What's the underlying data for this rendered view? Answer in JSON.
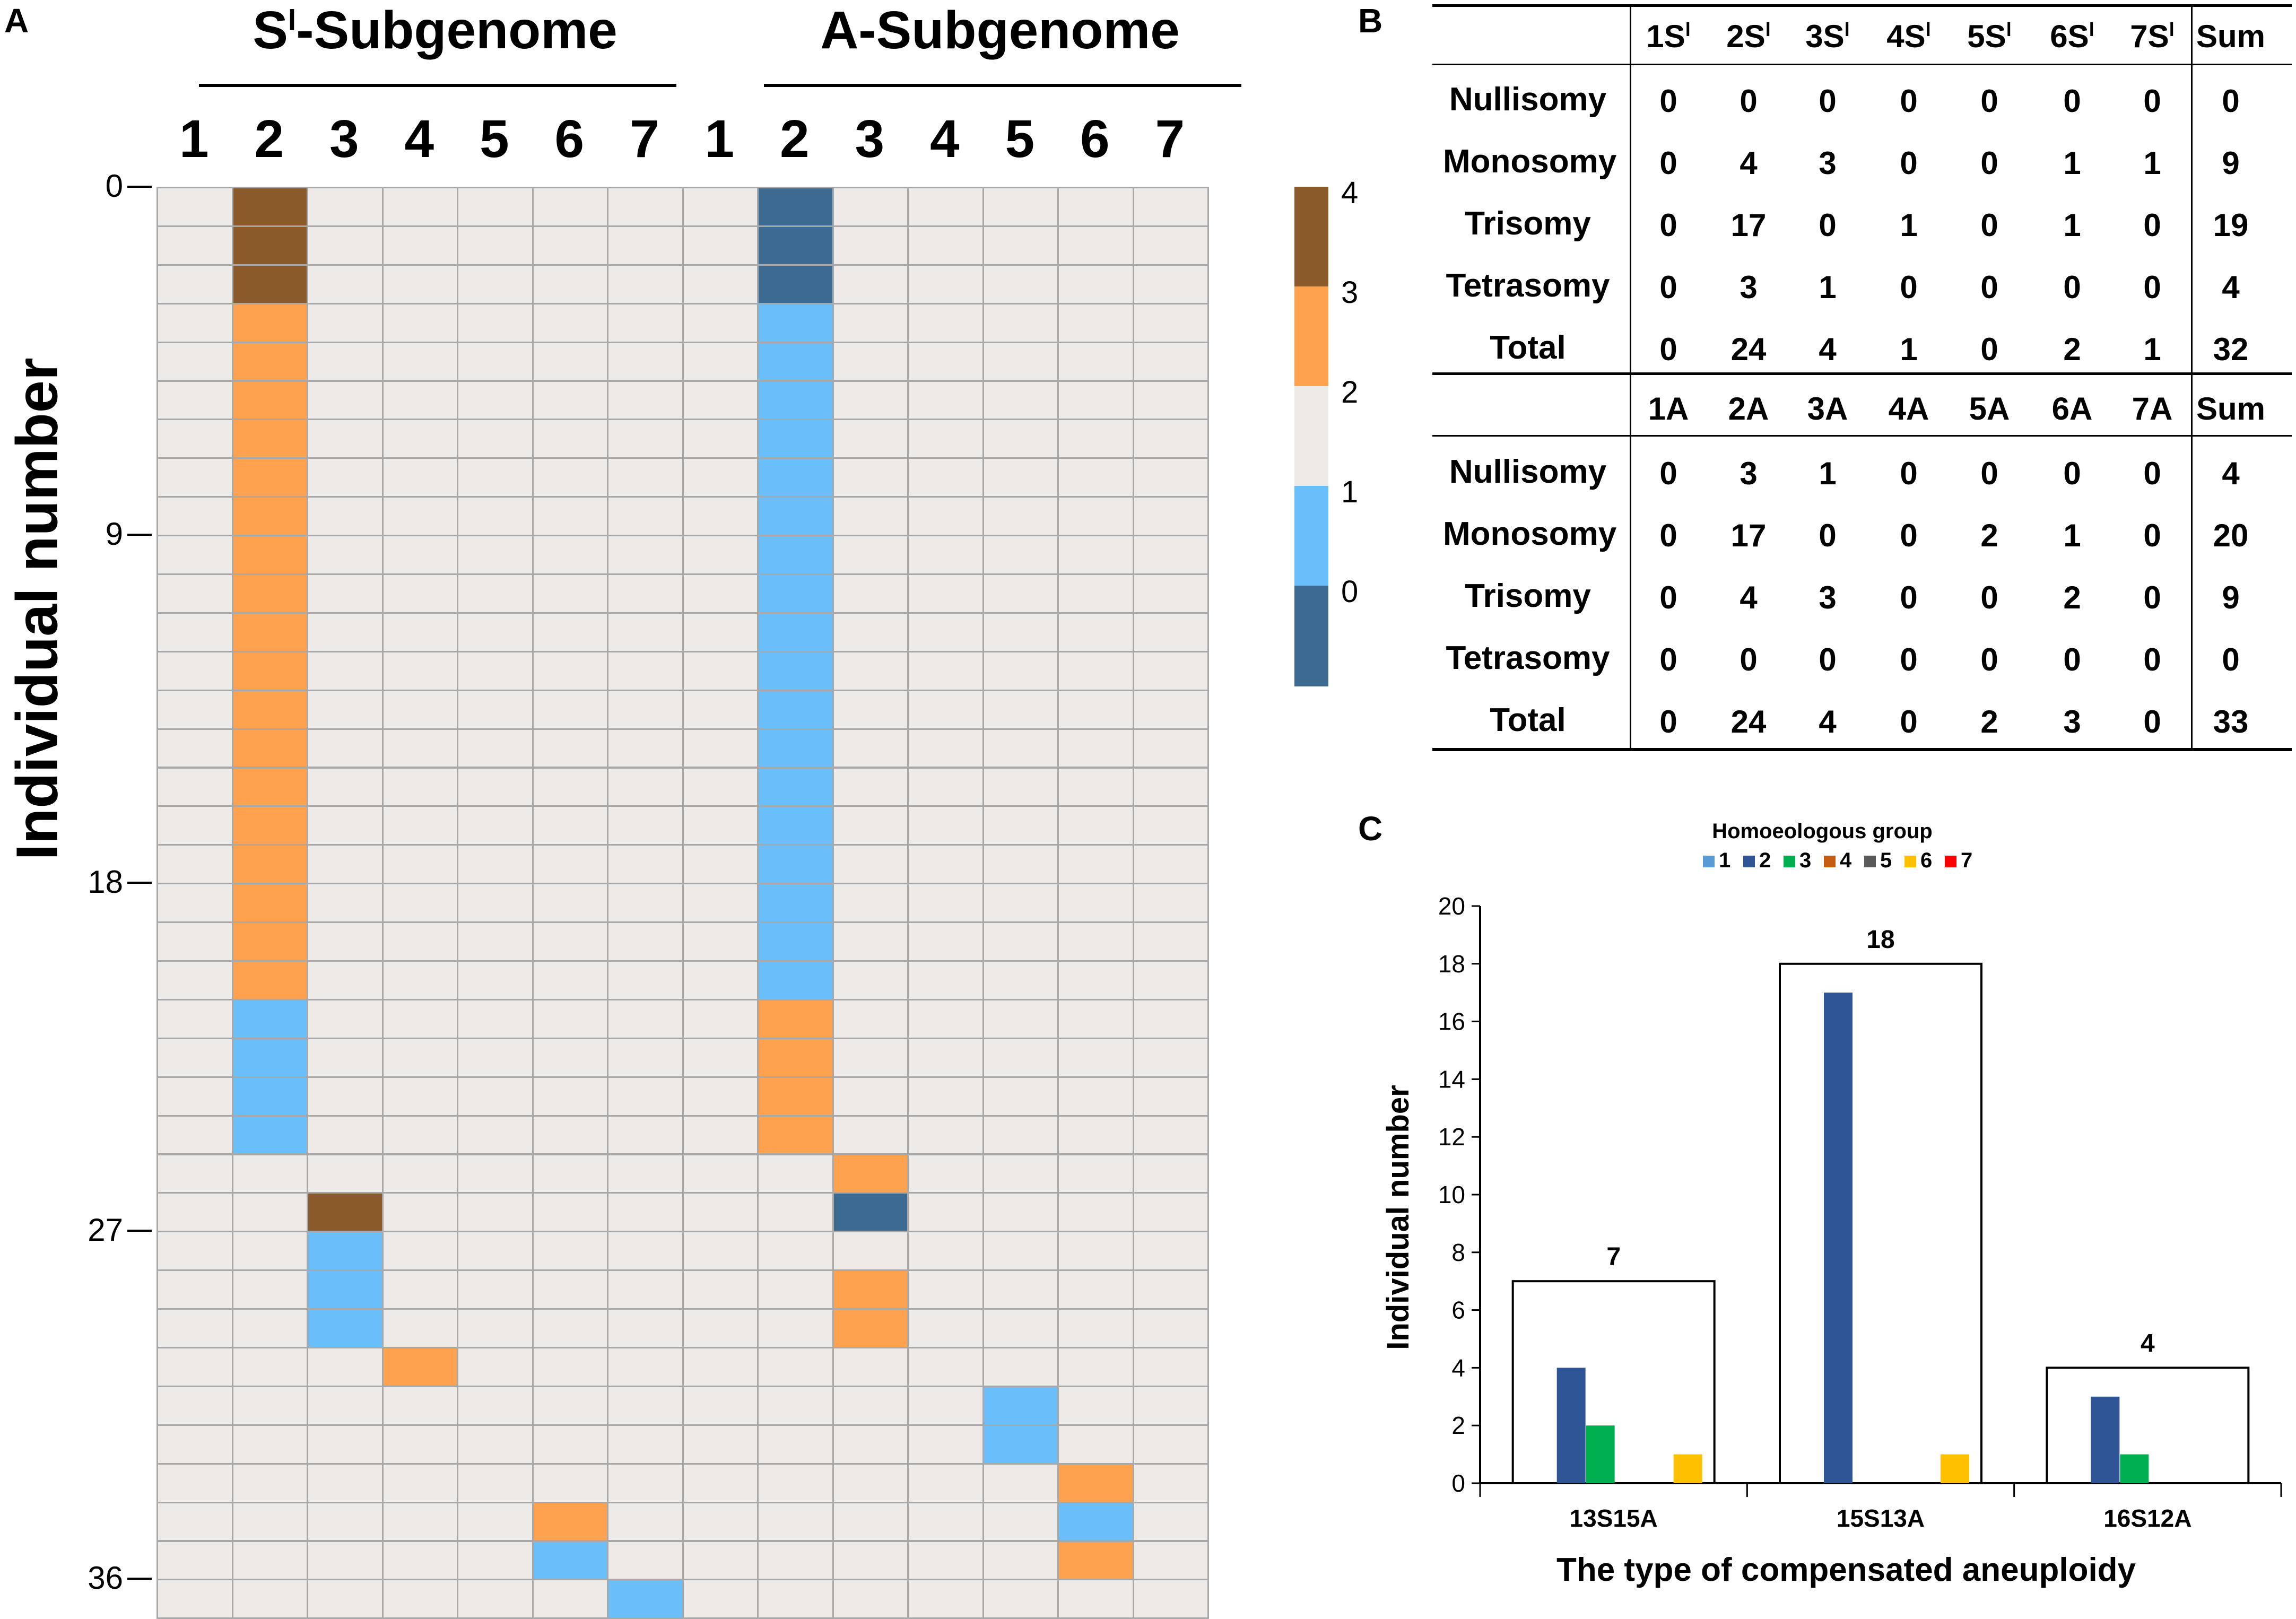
{
  "panels": {
    "a": "A",
    "b": "B",
    "c": "C"
  },
  "chart_data": [
    {
      "type": "heatmap",
      "title_left": "S",
      "title_left_sup": "l",
      "title_left_rest": "-Subgenome",
      "title_right": "A-Subgenome",
      "columns_left": [
        "1",
        "2",
        "3",
        "4",
        "5",
        "6",
        "7"
      ],
      "columns_right": [
        "1",
        "2",
        "3",
        "4",
        "5",
        "6",
        "7"
      ],
      "ylabel": "Individual number",
      "yticks": [
        "0",
        "9",
        "18",
        "27",
        "36"
      ],
      "colorbar": {
        "ticks": [
          "4",
          "3",
          "2",
          "1",
          "0"
        ],
        "colors": [
          "#8B5A2B",
          "#FFA24F",
          "#EDEAE8",
          "#6ABFFA",
          "#3D6A90"
        ]
      },
      "rows": [
        [
          2,
          4,
          2,
          2,
          2,
          2,
          2,
          2,
          0,
          2,
          2,
          2,
          2,
          2
        ],
        [
          2,
          4,
          2,
          2,
          2,
          2,
          2,
          2,
          0,
          2,
          2,
          2,
          2,
          2
        ],
        [
          2,
          4,
          2,
          2,
          2,
          2,
          2,
          2,
          0,
          2,
          2,
          2,
          2,
          2
        ],
        [
          2,
          3,
          2,
          2,
          2,
          2,
          2,
          2,
          1,
          2,
          2,
          2,
          2,
          2
        ],
        [
          2,
          3,
          2,
          2,
          2,
          2,
          2,
          2,
          1,
          2,
          2,
          2,
          2,
          2
        ],
        [
          2,
          3,
          2,
          2,
          2,
          2,
          2,
          2,
          1,
          2,
          2,
          2,
          2,
          2
        ],
        [
          2,
          3,
          2,
          2,
          2,
          2,
          2,
          2,
          1,
          2,
          2,
          2,
          2,
          2
        ],
        [
          2,
          3,
          2,
          2,
          2,
          2,
          2,
          2,
          1,
          2,
          2,
          2,
          2,
          2
        ],
        [
          2,
          3,
          2,
          2,
          2,
          2,
          2,
          2,
          1,
          2,
          2,
          2,
          2,
          2
        ],
        [
          2,
          3,
          2,
          2,
          2,
          2,
          2,
          2,
          1,
          2,
          2,
          2,
          2,
          2
        ],
        [
          2,
          3,
          2,
          2,
          2,
          2,
          2,
          2,
          1,
          2,
          2,
          2,
          2,
          2
        ],
        [
          2,
          3,
          2,
          2,
          2,
          2,
          2,
          2,
          1,
          2,
          2,
          2,
          2,
          2
        ],
        [
          2,
          3,
          2,
          2,
          2,
          2,
          2,
          2,
          1,
          2,
          2,
          2,
          2,
          2
        ],
        [
          2,
          3,
          2,
          2,
          2,
          2,
          2,
          2,
          1,
          2,
          2,
          2,
          2,
          2
        ],
        [
          2,
          3,
          2,
          2,
          2,
          2,
          2,
          2,
          1,
          2,
          2,
          2,
          2,
          2
        ],
        [
          2,
          3,
          2,
          2,
          2,
          2,
          2,
          2,
          1,
          2,
          2,
          2,
          2,
          2
        ],
        [
          2,
          3,
          2,
          2,
          2,
          2,
          2,
          2,
          1,
          2,
          2,
          2,
          2,
          2
        ],
        [
          2,
          3,
          2,
          2,
          2,
          2,
          2,
          2,
          1,
          2,
          2,
          2,
          2,
          2
        ],
        [
          2,
          3,
          2,
          2,
          2,
          2,
          2,
          2,
          1,
          2,
          2,
          2,
          2,
          2
        ],
        [
          2,
          3,
          2,
          2,
          2,
          2,
          2,
          2,
          1,
          2,
          2,
          2,
          2,
          2
        ],
        [
          2,
          3,
          2,
          2,
          2,
          2,
          2,
          2,
          1,
          2,
          2,
          2,
          2,
          2
        ],
        [
          2,
          1,
          2,
          2,
          2,
          2,
          2,
          2,
          3,
          2,
          2,
          2,
          2,
          2
        ],
        [
          2,
          1,
          2,
          2,
          2,
          2,
          2,
          2,
          3,
          2,
          2,
          2,
          2,
          2
        ],
        [
          2,
          1,
          2,
          2,
          2,
          2,
          2,
          2,
          3,
          2,
          2,
          2,
          2,
          2
        ],
        [
          2,
          1,
          2,
          2,
          2,
          2,
          2,
          2,
          3,
          2,
          2,
          2,
          2,
          2
        ],
        [
          2,
          2,
          2,
          2,
          2,
          2,
          2,
          2,
          2,
          3,
          2,
          2,
          2,
          2
        ],
        [
          2,
          2,
          4,
          2,
          2,
          2,
          2,
          2,
          2,
          0,
          2,
          2,
          2,
          2
        ],
        [
          2,
          2,
          1,
          2,
          2,
          2,
          2,
          2,
          2,
          2,
          2,
          2,
          2,
          2
        ],
        [
          2,
          2,
          1,
          2,
          2,
          2,
          2,
          2,
          2,
          3,
          2,
          2,
          2,
          2
        ],
        [
          2,
          2,
          1,
          2,
          2,
          2,
          2,
          2,
          2,
          3,
          2,
          2,
          2,
          2
        ],
        [
          2,
          2,
          2,
          3,
          2,
          2,
          2,
          2,
          2,
          2,
          2,
          2,
          2,
          2
        ],
        [
          2,
          2,
          2,
          2,
          2,
          2,
          2,
          2,
          2,
          2,
          2,
          1,
          2,
          2
        ],
        [
          2,
          2,
          2,
          2,
          2,
          2,
          2,
          2,
          2,
          2,
          2,
          1,
          2,
          2
        ],
        [
          2,
          2,
          2,
          2,
          2,
          2,
          2,
          2,
          2,
          2,
          2,
          2,
          3,
          2
        ],
        [
          2,
          2,
          2,
          2,
          2,
          3,
          2,
          2,
          2,
          2,
          2,
          2,
          1,
          2
        ],
        [
          2,
          2,
          2,
          2,
          2,
          1,
          2,
          2,
          2,
          2,
          2,
          2,
          3,
          2
        ],
        [
          2,
          2,
          2,
          2,
          2,
          2,
          1,
          2,
          2,
          2,
          2,
          2,
          2,
          2
        ]
      ]
    },
    {
      "type": "table",
      "blocks": [
        {
          "header": [
            {
              "main": "1S",
              "sup": "l"
            },
            {
              "main": "2S",
              "sup": "l"
            },
            {
              "main": "3S",
              "sup": "l"
            },
            {
              "main": "4S",
              "sup": "l"
            },
            {
              "main": "5S",
              "sup": "l"
            },
            {
              "main": "6S",
              "sup": "l"
            },
            {
              "main": "7S",
              "sup": "l"
            },
            {
              "main": "Sum",
              "sup": ""
            }
          ],
          "rows": [
            {
              "label": "Nullisomy",
              "values": [
                "0",
                "0",
                "0",
                "0",
                "0",
                "0",
                "0",
                "0"
              ]
            },
            {
              "label": "Monosomy",
              "values": [
                "0",
                "4",
                "3",
                "0",
                "0",
                "1",
                "1",
                "9"
              ]
            },
            {
              "label": "Trisomy",
              "values": [
                "0",
                "17",
                "0",
                "1",
                "0",
                "1",
                "0",
                "19"
              ]
            },
            {
              "label": "Tetrasomy",
              "values": [
                "0",
                "3",
                "1",
                "0",
                "0",
                "0",
                "0",
                "4"
              ]
            },
            {
              "label": "Total",
              "values": [
                "0",
                "24",
                "4",
                "1",
                "0",
                "2",
                "1",
                "32"
              ]
            }
          ]
        },
        {
          "header": [
            {
              "main": "1A",
              "sup": ""
            },
            {
              "main": "2A",
              "sup": ""
            },
            {
              "main": "3A",
              "sup": ""
            },
            {
              "main": "4A",
              "sup": ""
            },
            {
              "main": "5A",
              "sup": ""
            },
            {
              "main": "6A",
              "sup": ""
            },
            {
              "main": "7A",
              "sup": ""
            },
            {
              "main": "Sum",
              "sup": ""
            }
          ],
          "rows": [
            {
              "label": "Nullisomy",
              "values": [
                "0",
                "3",
                "1",
                "0",
                "0",
                "0",
                "0",
                "4"
              ]
            },
            {
              "label": "Monosomy",
              "values": [
                "0",
                "17",
                "0",
                "0",
                "2",
                "1",
                "0",
                "20"
              ]
            },
            {
              "label": "Trisomy",
              "values": [
                "0",
                "4",
                "3",
                "0",
                "0",
                "2",
                "0",
                "9"
              ]
            },
            {
              "label": "Tetrasomy",
              "values": [
                "0",
                "0",
                "0",
                "0",
                "0",
                "0",
                "0",
                "0"
              ]
            },
            {
              "label": "Total",
              "values": [
                "0",
                "24",
                "4",
                "0",
                "2",
                "3",
                "0",
                "33"
              ]
            }
          ]
        }
      ]
    },
    {
      "type": "bar",
      "legend_title": "Homoeologous group",
      "legend": [
        {
          "name": "1",
          "color": "#5B9BD5"
        },
        {
          "name": "2",
          "color": "#2F5597"
        },
        {
          "name": "3",
          "color": "#00B050"
        },
        {
          "name": "4",
          "color": "#C55A11"
        },
        {
          "name": "5",
          "color": "#595959"
        },
        {
          "name": "6",
          "color": "#FFC000"
        },
        {
          "name": "7",
          "color": "#FF0000"
        }
      ],
      "categories": [
        "13S15A",
        "15S13A",
        "16S12A"
      ],
      "totals": [
        7,
        18,
        4
      ],
      "series": [
        {
          "name": "1",
          "values": [
            0,
            0,
            0
          ]
        },
        {
          "name": "2",
          "values": [
            4,
            17,
            3
          ]
        },
        {
          "name": "3",
          "values": [
            2,
            0,
            1
          ]
        },
        {
          "name": "4",
          "values": [
            0,
            0,
            0
          ]
        },
        {
          "name": "5",
          "values": [
            0,
            0,
            0
          ]
        },
        {
          "name": "6",
          "values": [
            1,
            1,
            0
          ]
        },
        {
          "name": "7",
          "values": [
            0,
            0,
            0
          ]
        }
      ],
      "ylabel": "Individual number",
      "xlabel": "The type of compensated aneuploidy",
      "ylim": [
        0,
        20
      ],
      "yticks": [
        "0",
        "2",
        "4",
        "6",
        "8",
        "10",
        "12",
        "14",
        "16",
        "18",
        "20"
      ]
    }
  ]
}
